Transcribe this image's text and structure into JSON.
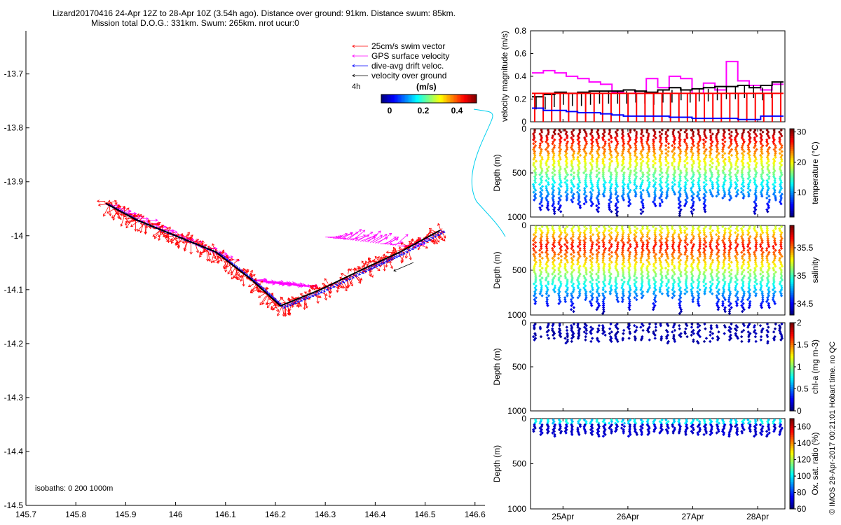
{
  "header": {
    "line1": "Lizard20170416 24-Apr 12Z to 28-Apr 10Z (3.54h ago). Distance over ground: 91km. Distance swum: 85km.",
    "line2": "Mission total D.O.G.: 331km. Swum: 265km. nrot ucur:0"
  },
  "colors": {
    "swim": "#ff0000",
    "gps": "#ff00ff",
    "drift": "#0000ff",
    "over_ground": "#000000",
    "connector": "#00d0ee"
  },
  "legend": {
    "items": [
      {
        "label": "25cm/s swim vector",
        "color": "#ff0000"
      },
      {
        "label": "GPS surface velocity",
        "color": "#ff00ff"
      },
      {
        "label": "dive-avg drift veloc.",
        "color": "#0000ff"
      },
      {
        "label": "velocity over ground",
        "color": "#000000"
      }
    ],
    "timestep": "4h",
    "colorbar_title": "(m/s)",
    "colorbar_ticks": [
      "0",
      "0.2",
      "0.4"
    ]
  },
  "isobaths": "isobaths: 0   200  1000m",
  "footer_credit": "© IMOS 29-Apr-2017 00:21:01 Hobart time. no QC",
  "chart_data": [
    {
      "type": "scatter",
      "title": "glider track map",
      "xlim": [
        145.7,
        146.62
      ],
      "ylim": [
        -14.5,
        -13.62
      ],
      "x_ticks": [
        "145.7",
        "145.8",
        "145.9",
        "146",
        "146.1",
        "146.2",
        "146.3",
        "146.4",
        "146.5",
        "146.6"
      ],
      "y_ticks": [
        "-13.7",
        "-13.8",
        "-13.9",
        "-14",
        "-14.1",
        "-14.2",
        "-14.3",
        "-14.4",
        "-14.5"
      ],
      "track": {
        "lon": [
          145.86,
          145.92,
          146.0,
          146.08,
          146.15,
          146.21,
          146.29,
          146.38,
          146.45,
          146.53
        ],
        "lat": [
          -13.94,
          -13.97,
          -14.0,
          -14.03,
          -14.08,
          -14.13,
          -14.1,
          -14.06,
          -14.03,
          -13.99
        ]
      },
      "gps_vector_segments": [
        {
          "lon": [
            145.86,
            146.1
          ],
          "lat": [
            -13.94,
            -14.04
          ]
        },
        {
          "lon": [
            146.15,
            146.26
          ],
          "lat": [
            -14.08,
            -14.09
          ]
        },
        {
          "lon": [
            146.3,
            146.48
          ],
          "lat": [
            -14.0,
            -14.02
          ]
        }
      ]
    },
    {
      "type": "line",
      "ylabel": "velocity magnitude (m/s)",
      "ylim": [
        0,
        0.8
      ],
      "y_ticks": [
        "0",
        "0.2",
        "0.4",
        "0.6",
        "0.8"
      ],
      "series": [
        {
          "name": "GPS surface velocity",
          "color": "#ff00ff",
          "values": [
            0.43,
            0.45,
            0.43,
            0.4,
            0.38,
            0.35,
            0.33,
            0.26,
            0.28,
            0.25,
            0.38,
            0.3,
            0.4,
            0.38,
            0.25,
            0.34,
            0.28,
            0.53,
            0.36,
            0.32,
            0.28,
            0.33
          ]
        },
        {
          "name": "velocity over ground",
          "color": "#000000",
          "values": [
            0.22,
            0.24,
            0.26,
            0.25,
            0.26,
            0.27,
            0.27,
            0.27,
            0.28,
            0.27,
            0.26,
            0.28,
            0.3,
            0.28,
            0.29,
            0.3,
            0.31,
            0.31,
            0.32,
            0.3,
            0.32,
            0.35
          ]
        },
        {
          "name": "swim speed",
          "color": "#ff0000",
          "values": [
            0.25,
            0.25,
            0.25,
            0.25,
            0.25,
            0.25,
            0.25,
            0.25,
            0.25,
            0.25,
            0.25,
            0.25,
            0.25,
            0.25,
            0.25,
            0.25,
            0.25,
            0.25,
            0.25,
            0.25,
            0.25,
            0.25
          ]
        },
        {
          "name": "dive-avg drift",
          "color": "#0000ff",
          "values": [
            0.12,
            0.1,
            0.1,
            0.09,
            0.08,
            0.08,
            0.07,
            0.06,
            0.05,
            0.05,
            0.05,
            0.05,
            0.04,
            0.04,
            0.03,
            0.03,
            0.03,
            0.03,
            0.02,
            0.02,
            0.05,
            0.05
          ]
        }
      ]
    },
    {
      "type": "scatter",
      "ylabel": "Depth (m)",
      "ylim": [
        1000,
        0
      ],
      "y_ticks": [
        "0",
        "500",
        "1000"
      ],
      "colorbar_label": "temperature (°C)",
      "colorbar_ticks": [
        "10",
        "20",
        "30"
      ],
      "colorbar_range": [
        2,
        31
      ],
      "profiles": 40,
      "max_depth": 1000
    },
    {
      "type": "scatter",
      "ylabel": "Depth (m)",
      "ylim": [
        1000,
        0
      ],
      "y_ticks": [
        "0",
        "500",
        "1000"
      ],
      "colorbar_label": "salinity",
      "colorbar_ticks": [
        "34.5",
        "35",
        "35.5"
      ],
      "colorbar_range": [
        34.3,
        35.9
      ],
      "profiles": 40,
      "max_depth": 1000
    },
    {
      "type": "scatter",
      "ylabel": "Depth (m)",
      "ylim": [
        1000,
        0
      ],
      "y_ticks": [
        "0",
        "500",
        "1000"
      ],
      "colorbar_label": "chl-a (mg m-3)",
      "colorbar_ticks": [
        "0",
        "0.5",
        "1",
        "1.5",
        "2"
      ],
      "colorbar_range": [
        0,
        2
      ],
      "profiles": 40,
      "max_depth": 250
    },
    {
      "type": "scatter",
      "ylabel": "Depth (m)",
      "ylim": [
        1000,
        0
      ],
      "y_ticks": [
        "0",
        "500",
        "1000"
      ],
      "colorbar_label": "Ox. sat. ratio (%)",
      "colorbar_ticks": [
        "60",
        "80",
        "100",
        "120",
        "140",
        "160"
      ],
      "colorbar_range": [
        60,
        170
      ],
      "profiles": 40,
      "max_depth": 200
    }
  ],
  "time_axis": {
    "ticks": [
      "25Apr",
      "26Apr",
      "27Apr",
      "28Apr"
    ],
    "tick_days": [
      1,
      2,
      3,
      4
    ],
    "range_days": [
      0.5,
      4.42
    ]
  }
}
